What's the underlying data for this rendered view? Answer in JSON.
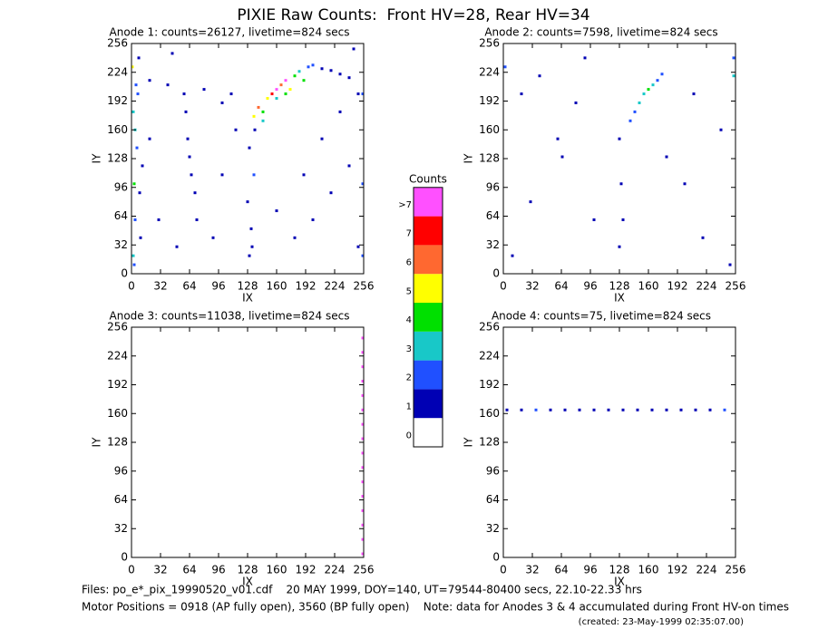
{
  "title": "PIXIE Raw Counts:  Front HV=28, Rear HV=34",
  "chart_data": [
    {
      "type": "scatter",
      "title": "Anode 1: counts=26127, livetime=824 secs",
      "x_label": "IX",
      "y_label": "IY",
      "xlim": [
        0,
        256
      ],
      "ylim": [
        0,
        256
      ],
      "xticks": [
        0,
        32,
        64,
        96,
        128,
        160,
        192,
        224,
        256
      ],
      "yticks": [
        0,
        32,
        64,
        96,
        128,
        160,
        192,
        224,
        256
      ],
      "x": [
        2,
        4,
        3,
        6,
        2,
        5,
        8,
        10,
        12,
        7,
        1,
        4,
        9,
        3,
        62,
        64,
        66,
        60,
        70,
        58,
        72,
        130,
        132,
        128,
        135,
        130,
        136,
        133,
        135,
        140,
        145,
        150,
        155,
        160,
        165,
        170,
        175,
        180,
        185,
        190,
        160,
        170,
        145,
        195,
        200,
        210,
        220,
        230,
        240,
        20,
        40,
        80,
        100,
        110,
        30,
        90,
        100,
        200,
        220,
        240,
        180,
        210,
        230,
        250,
        250,
        190,
        160,
        50,
        20,
        115,
        45,
        245,
        255,
        255,
        255
      ],
      "y": [
        20,
        60,
        100,
        140,
        180,
        210,
        240,
        40,
        120,
        200,
        230,
        160,
        90,
        10,
        150,
        130,
        110,
        180,
        90,
        200,
        60,
        20,
        50,
        80,
        110,
        140,
        160,
        30,
        175,
        185,
        180,
        195,
        200,
        205,
        210,
        215,
        205,
        220,
        225,
        215,
        195,
        200,
        170,
        230,
        232,
        228,
        226,
        222,
        218,
        215,
        210,
        205,
        190,
        200,
        60,
        40,
        110,
        60,
        90,
        120,
        40,
        150,
        180,
        200,
        30,
        110,
        70,
        30,
        150,
        160,
        245,
        250,
        20,
        100,
        200
      ],
      "values": [
        3,
        2,
        4,
        2,
        3,
        2,
        1,
        1,
        1,
        2,
        5,
        3,
        1,
        2,
        1,
        1,
        1,
        1,
        1,
        1,
        1,
        1,
        1,
        1,
        2,
        1,
        1,
        1,
        5,
        6,
        4,
        5,
        7,
        8,
        6,
        8,
        5,
        4,
        3,
        4,
        3,
        4,
        3,
        2,
        2,
        1,
        1,
        1,
        1,
        1,
        1,
        1,
        1,
        1,
        1,
        1,
        1,
        1,
        1,
        1,
        1,
        1,
        1,
        1,
        1,
        1,
        1,
        1,
        1,
        1,
        1,
        1,
        2,
        2,
        2
      ]
    },
    {
      "type": "scatter",
      "title": "Anode 2: counts=7598, livetime=824 secs",
      "x_label": "IX",
      "y_label": "IY",
      "xlim": [
        0,
        256
      ],
      "ylim": [
        0,
        256
      ],
      "xticks": [
        0,
        32,
        64,
        96,
        128,
        160,
        192,
        224,
        256
      ],
      "yticks": [
        0,
        32,
        64,
        96,
        128,
        160,
        192,
        224,
        256
      ],
      "x": [
        2,
        254,
        254,
        140,
        145,
        150,
        155,
        160,
        165,
        170,
        175,
        128,
        130,
        132,
        128,
        60,
        65,
        20,
        40,
        80,
        100,
        200,
        220,
        240,
        30,
        180,
        210,
        250,
        10,
        90
      ],
      "y": [
        230,
        220,
        240,
        170,
        180,
        190,
        200,
        205,
        210,
        215,
        222,
        150,
        100,
        60,
        30,
        150,
        130,
        200,
        220,
        190,
        60,
        100,
        40,
        160,
        80,
        130,
        200,
        10,
        20,
        240
      ],
      "values": [
        2,
        3,
        2,
        2,
        2,
        3,
        3,
        4,
        3,
        2,
        2,
        1,
        1,
        1,
        1,
        1,
        1,
        1,
        1,
        1,
        1,
        1,
        1,
        1,
        1,
        1,
        1,
        1,
        1,
        1
      ]
    },
    {
      "type": "scatter",
      "title": "Anode 3: counts=11038, livetime=824 secs",
      "x_label": "IX",
      "y_label": "IY",
      "xlim": [
        0,
        256
      ],
      "ylim": [
        0,
        256
      ],
      "xticks": [
        0,
        32,
        64,
        96,
        128,
        160,
        192,
        224,
        256
      ],
      "yticks": [
        0,
        32,
        64,
        96,
        128,
        160,
        192,
        224,
        256
      ],
      "x": [
        255,
        255,
        255,
        255,
        255,
        255,
        255,
        255,
        255,
        255,
        255,
        255,
        255,
        255,
        255,
        255
      ],
      "y": [
        4,
        20,
        36,
        52,
        68,
        84,
        100,
        116,
        132,
        148,
        164,
        180,
        196,
        212,
        228,
        244
      ],
      "values": [
        8,
        8,
        8,
        8,
        8,
        8,
        8,
        8,
        8,
        8,
        8,
        8,
        8,
        8,
        8,
        8
      ]
    },
    {
      "type": "scatter",
      "title": "Anode 4: counts=75, livetime=824 secs",
      "x_label": "IX",
      "y_label": "IY",
      "xlim": [
        0,
        256
      ],
      "ylim": [
        0,
        256
      ],
      "xticks": [
        0,
        32,
        64,
        96,
        128,
        160,
        192,
        224,
        256
      ],
      "yticks": [
        0,
        32,
        64,
        96,
        128,
        160,
        192,
        224,
        256
      ],
      "x": [
        4,
        20,
        36,
        52,
        68,
        84,
        100,
        116,
        132,
        148,
        164,
        180,
        196,
        212,
        228,
        244
      ],
      "y": [
        164,
        164,
        164,
        164,
        164,
        164,
        164,
        164,
        164,
        164,
        164,
        164,
        164,
        164,
        164,
        164
      ],
      "values": [
        1,
        1,
        2,
        1,
        1,
        1,
        1,
        1,
        1,
        1,
        1,
        1,
        1,
        1,
        1,
        2
      ]
    },
    {
      "type": "colorbar",
      "title": "Counts",
      "categories": [
        "0",
        "1",
        "2",
        "3",
        "4",
        "5",
        "6",
        "7",
        ">7"
      ],
      "colors": [
        "#ffffff",
        "#0000b4",
        "#2050ff",
        "#18c8c8",
        "#00e000",
        "#ffff00",
        "#ff6830",
        "#ff0000",
        "#ff50ff"
      ]
    }
  ],
  "notes": [
    "Files: po_e*_pix_19990520_v01.cdf    20 MAY 1999, DOY=140, UT=79544-80400 secs, 22.10-22.33 hrs",
    "Motor Positions = 0918 (AP fully open), 3560 (BP fully open)    Note: data for Anodes 3 & 4 accumulated during Front HV-on times",
    "(created: 23-May-1999 02:35:07.00)"
  ]
}
